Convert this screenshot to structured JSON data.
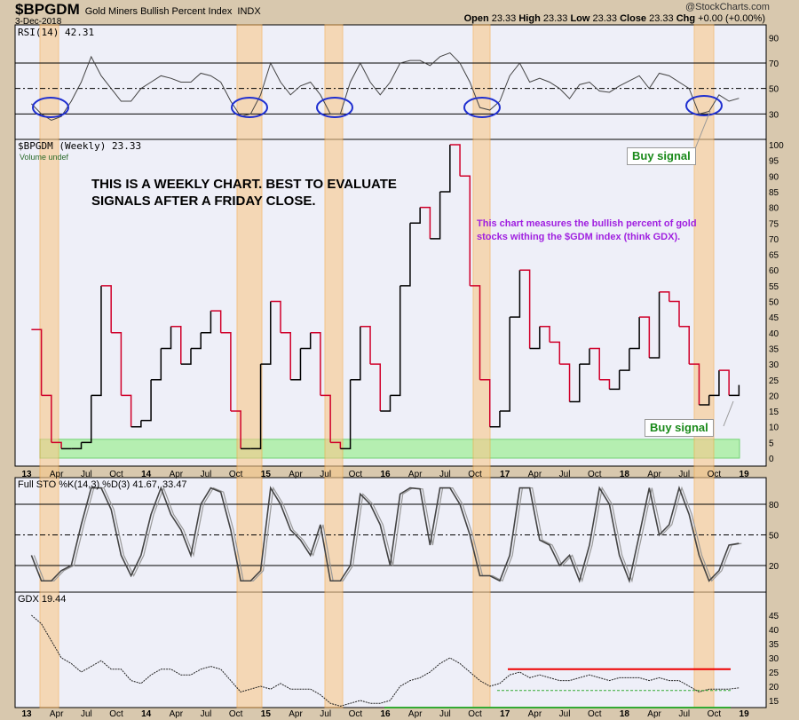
{
  "header": {
    "symbol": "$BPGDM",
    "name": "Gold Miners Bullish Percent Index",
    "exchange": "INDX",
    "date": "3-Dec-2018",
    "brand": "@StockCharts.com",
    "quote": [
      {
        "k": "Open",
        "v": "23.33"
      },
      {
        "k": "High",
        "v": "23.33"
      },
      {
        "k": "Low",
        "v": "23.33"
      },
      {
        "k": "Close",
        "v": "23.33"
      },
      {
        "k": "Chg",
        "v": "+0.00 (+0.00%)"
      }
    ]
  },
  "colors": {
    "band": "#f9c88a",
    "ellipse": "#1f2fd0",
    "up": "#000000",
    "down": "#d0002a",
    "green_zone": "#a8f0a0",
    "panel_bg": "#eeeff8"
  },
  "x_ticks": [
    "13",
    "Apr",
    "Jul",
    "Oct",
    "14",
    "Apr",
    "Jul",
    "Oct",
    "15",
    "Apr",
    "Jul",
    "Oct",
    "16",
    "Apr",
    "Jul",
    "Oct",
    "17",
    "Apr",
    "Jul",
    "Oct",
    "18",
    "Apr",
    "Jul",
    "Oct",
    "19"
  ],
  "annotations": {
    "weekly_note_1": "THIS IS A WEEKLY CHART. BEST TO EVALUATE",
    "weekly_note_2": "SIGNALS AFTER A FRIDAY CLOSE.",
    "measure_note_1": "This chart measures the bullish percent of gold",
    "measure_note_2": "stocks withing the $GDM index (think GDX).",
    "buy_signal_1": "Buy signal",
    "buy_signal_2": "Buy signal"
  },
  "chart_data": [
    {
      "type": "line",
      "title": "RSI(14) 42.31",
      "yticks": [
        90,
        70,
        50,
        30
      ],
      "ylim": [
        10,
        100
      ],
      "dates": [
        "2013-01",
        "2013-02",
        "2013-03",
        "2013-04",
        "2013-05",
        "2013-06",
        "2013-07",
        "2013-08",
        "2013-09",
        "2013-10",
        "2013-11",
        "2013-12",
        "2014-01",
        "2014-02",
        "2014-03",
        "2014-04",
        "2014-05",
        "2014-06",
        "2014-07",
        "2014-08",
        "2014-09",
        "2014-10",
        "2014-11",
        "2014-12",
        "2015-01",
        "2015-02",
        "2015-03",
        "2015-04",
        "2015-05",
        "2015-06",
        "2015-07",
        "2015-08",
        "2015-09",
        "2015-10",
        "2015-11",
        "2015-12",
        "2016-01",
        "2016-02",
        "2016-03",
        "2016-04",
        "2016-05",
        "2016-06",
        "2016-07",
        "2016-08",
        "2016-09",
        "2016-10",
        "2016-11",
        "2016-12",
        "2017-01",
        "2017-02",
        "2017-03",
        "2017-04",
        "2017-05",
        "2017-06",
        "2017-07",
        "2017-08",
        "2017-09",
        "2017-10",
        "2017-11",
        "2017-12",
        "2018-01",
        "2018-02",
        "2018-03",
        "2018-04",
        "2018-05",
        "2018-06",
        "2018-07",
        "2018-08",
        "2018-09",
        "2018-10",
        "2018-11",
        "2018-12"
      ],
      "values": [
        38,
        30,
        25,
        28,
        40,
        55,
        75,
        60,
        50,
        40,
        40,
        50,
        55,
        60,
        58,
        55,
        55,
        62,
        60,
        55,
        40,
        28,
        30,
        45,
        70,
        55,
        45,
        52,
        55,
        45,
        30,
        30,
        55,
        70,
        55,
        45,
        55,
        70,
        72,
        72,
        68,
        75,
        78,
        70,
        55,
        35,
        33,
        40,
        60,
        70,
        55,
        58,
        55,
        50,
        42,
        53,
        55,
        48,
        47,
        52,
        56,
        60,
        50,
        62,
        60,
        55,
        50,
        30,
        32,
        45,
        40,
        42.31
      ]
    },
    {
      "type": "line",
      "title": "$BPGDM (Weekly) 23.33",
      "subtitle": "Volume undef",
      "yticks": [
        100,
        95,
        90,
        85,
        80,
        75,
        70,
        65,
        60,
        55,
        50,
        45,
        40,
        35,
        30,
        25,
        20,
        15,
        10,
        5,
        0
      ],
      "ylim": [
        0,
        100
      ],
      "values": [
        41,
        20,
        5,
        3,
        3,
        5,
        20,
        55,
        40,
        20,
        10,
        12,
        25,
        35,
        42,
        30,
        35,
        40,
        47,
        40,
        15,
        3,
        3,
        30,
        50,
        40,
        25,
        35,
        40,
        20,
        5,
        3,
        25,
        42,
        30,
        15,
        20,
        55,
        75,
        80,
        70,
        85,
        100,
        90,
        55,
        25,
        10,
        15,
        45,
        60,
        35,
        42,
        37,
        30,
        18,
        30,
        35,
        25,
        22,
        28,
        35,
        45,
        32,
        53,
        50,
        42,
        30,
        17,
        20,
        28,
        20,
        23.33
      ]
    },
    {
      "type": "line",
      "title": "Full STO %K(14,3) %D(3) 41.67, 33.47",
      "yticks": [
        80,
        50,
        20
      ],
      "ylim": [
        -5,
        105
      ],
      "values": [
        30,
        5,
        5,
        15,
        20,
        60,
        96,
        96,
        75,
        30,
        10,
        30,
        70,
        96,
        70,
        55,
        30,
        80,
        96,
        92,
        55,
        5,
        5,
        15,
        96,
        80,
        55,
        45,
        30,
        60,
        5,
        5,
        20,
        90,
        80,
        60,
        20,
        90,
        96,
        95,
        40,
        96,
        96,
        80,
        50,
        10,
        10,
        5,
        30,
        96,
        96,
        45,
        40,
        20,
        30,
        5,
        40,
        96,
        80,
        30,
        5,
        50,
        96,
        50,
        60,
        96,
        70,
        30,
        5,
        15,
        40,
        41.67
      ]
    },
    {
      "type": "line",
      "title": "GDX 19.44",
      "yticks": [
        45,
        40,
        35,
        30,
        25,
        20,
        15
      ],
      "ylim": [
        10,
        52
      ],
      "values": [
        45,
        42,
        36,
        30,
        28,
        25,
        27,
        29,
        26,
        26,
        22,
        21,
        24,
        26,
        26,
        24,
        24,
        26,
        27,
        26,
        22,
        18,
        19,
        20,
        19,
        21,
        19,
        19,
        19,
        17,
        14,
        13,
        14,
        15,
        14,
        14,
        15,
        20,
        22,
        23,
        25,
        28,
        30,
        28,
        25,
        22,
        20,
        21,
        24,
        25,
        23,
        24,
        23,
        22,
        22,
        23,
        24,
        23,
        22,
        23,
        23,
        23,
        22,
        23,
        22,
        22,
        20,
        18,
        19,
        19,
        19,
        19.44
      ]
    }
  ]
}
